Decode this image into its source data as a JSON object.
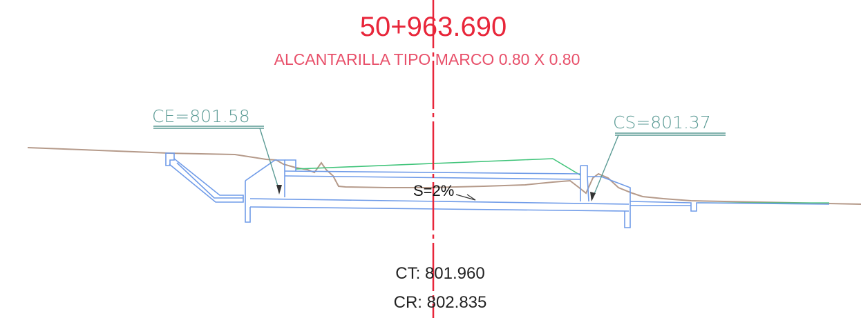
{
  "header": {
    "station": "50+963.690",
    "description": "ALCANTARILLA TIPO MARCO 0.80 X 0.80"
  },
  "labels": {
    "inlet_elevation": "CE=801.58",
    "outlet_elevation": "CS=801.37",
    "slope": "S=2%"
  },
  "levels": {
    "ct": "CT: 801.960",
    "cr": "CR: 802.835"
  },
  "colors": {
    "axis": "#e8263a",
    "title": "#e8263a",
    "subtitle": "#e8506a",
    "structure": "#6f9be8",
    "terrain": "#b59a8a",
    "road": "#40c47a",
    "leader": "#5a9a94",
    "text_dark": "#222222"
  }
}
